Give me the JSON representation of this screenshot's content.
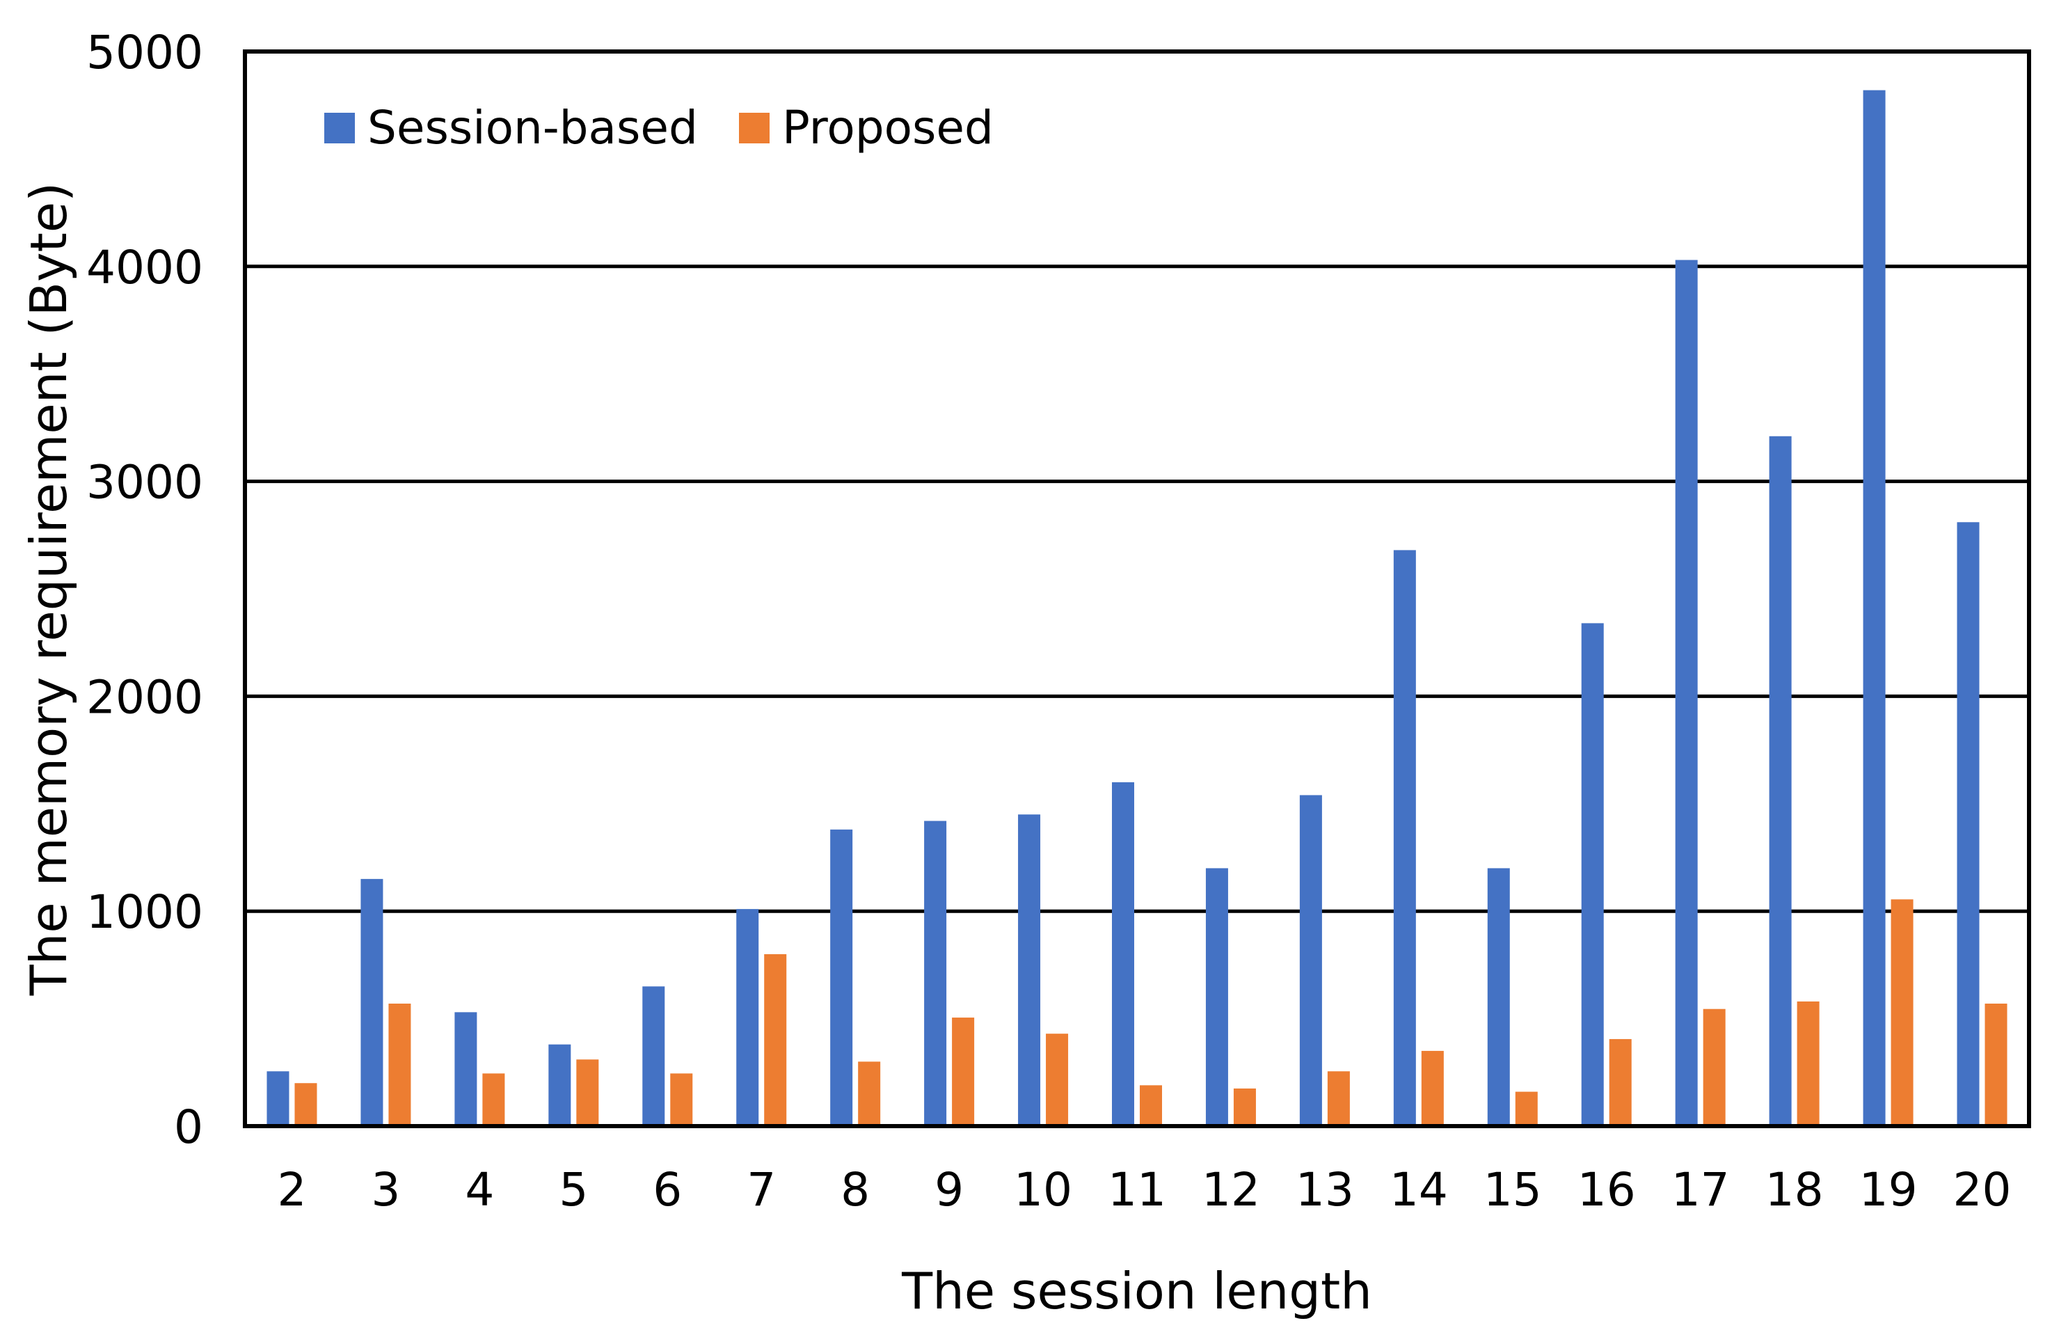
{
  "chart_data": {
    "type": "bar",
    "title": "",
    "xlabel": "The session length",
    "ylabel": "The memory requirement  (Byte)",
    "categories": [
      "2",
      "3",
      "4",
      "5",
      "6",
      "7",
      "8",
      "9",
      "10",
      "11",
      "12",
      "13",
      "14",
      "15",
      "16",
      "17",
      "18",
      "19",
      "20"
    ],
    "series": [
      {
        "name": "Session-based",
        "color": "#4472C4",
        "values": [
          255,
          1150,
          530,
          380,
          650,
          1010,
          1380,
          1420,
          1450,
          1600,
          1200,
          1540,
          2680,
          1200,
          2340,
          4030,
          3210,
          4820,
          2810
        ]
      },
      {
        "name": "Proposed",
        "color": "#ED7D31",
        "values": [
          200,
          570,
          245,
          310,
          245,
          800,
          300,
          505,
          430,
          190,
          175,
          255,
          350,
          160,
          405,
          545,
          580,
          1055,
          570
        ]
      }
    ],
    "ylim": [
      0,
      5000
    ],
    "yticks": [
      0,
      1000,
      2000,
      3000,
      4000,
      5000
    ],
    "ytick_labels": [
      "0",
      "1000",
      "2000",
      "3000",
      "4000",
      "5000"
    ],
    "grid": true,
    "legend_position": "top-left"
  }
}
